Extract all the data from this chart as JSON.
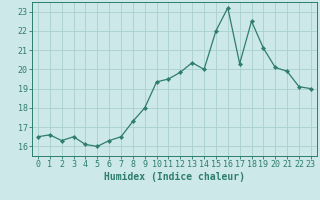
{
  "x": [
    0,
    1,
    2,
    3,
    4,
    5,
    6,
    7,
    8,
    9,
    10,
    11,
    12,
    13,
    14,
    15,
    16,
    17,
    18,
    19,
    20,
    21,
    22,
    23
  ],
  "y": [
    16.5,
    16.6,
    16.3,
    16.5,
    16.1,
    16.0,
    16.3,
    16.5,
    17.3,
    18.0,
    19.35,
    19.5,
    19.85,
    20.35,
    20.0,
    22.0,
    23.2,
    20.3,
    22.5,
    21.1,
    20.1,
    19.9,
    19.1,
    19.0
  ],
  "line_color": "#2e7d6e",
  "marker": "D",
  "marker_size": 2.2,
  "bg_color": "#cce8e8",
  "grid_color": "#aacfcf",
  "xlabel": "Humidex (Indice chaleur)",
  "xlim": [
    -0.5,
    23.5
  ],
  "ylim": [
    15.5,
    23.5
  ],
  "yticks": [
    16,
    17,
    18,
    19,
    20,
    21,
    22,
    23
  ],
  "xticks": [
    0,
    1,
    2,
    3,
    4,
    5,
    6,
    7,
    8,
    9,
    10,
    11,
    12,
    13,
    14,
    15,
    16,
    17,
    18,
    19,
    20,
    21,
    22,
    23
  ],
  "tick_color": "#2e7d6e",
  "xlabel_fontsize": 7.0,
  "tick_fontsize": 6.0,
  "linewidth": 0.9
}
